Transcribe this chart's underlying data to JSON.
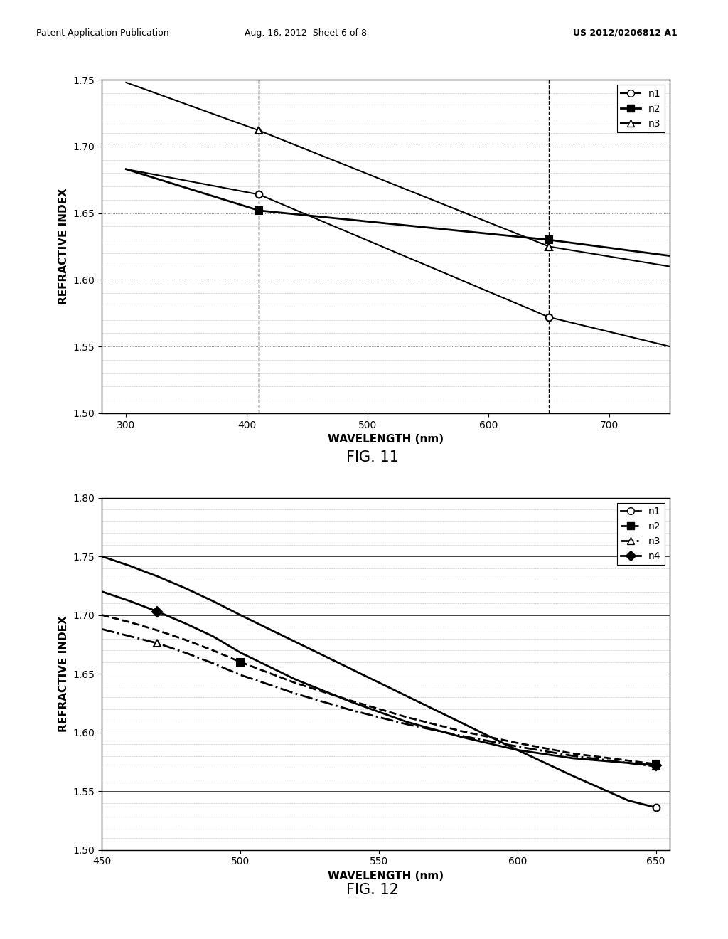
{
  "header_left": "Patent Application Publication",
  "header_mid": "Aug. 16, 2012  Sheet 6 of 8",
  "header_right": "US 2012/0206812 A1",
  "fig11": {
    "title": "FIG. 11",
    "xlabel": "WAVELENGTH (nm)",
    "ylabel": "REFRACTIVE INDEX",
    "xlim": [
      280,
      750
    ],
    "ylim": [
      1.5,
      1.75
    ],
    "xticks": [
      300,
      400,
      500,
      600,
      700
    ],
    "yticks": [
      1.5,
      1.55,
      1.6,
      1.65,
      1.7,
      1.75
    ],
    "vlines": [
      410,
      650
    ],
    "n1": {
      "x": [
        300,
        410,
        650,
        750
      ],
      "y": [
        1.683,
        1.664,
        1.572,
        1.55
      ],
      "label": "n1",
      "marker": "o",
      "markerfacecolor": "white",
      "markeredgecolor": "black",
      "linestyle": "-",
      "color": "black",
      "linewidth": 1.5,
      "markersize": 7,
      "show_markers_at": [
        410,
        650
      ]
    },
    "n2": {
      "x": [
        300,
        410,
        650,
        750
      ],
      "y": [
        1.683,
        1.652,
        1.63,
        1.618
      ],
      "label": "n2",
      "marker": "s",
      "markerfacecolor": "black",
      "markeredgecolor": "black",
      "linestyle": "-",
      "color": "black",
      "linewidth": 2.0,
      "markersize": 7,
      "show_markers_at": [
        410,
        650
      ]
    },
    "n3": {
      "x": [
        300,
        410,
        650,
        750
      ],
      "y": [
        1.748,
        1.712,
        1.625,
        1.61
      ],
      "label": "n3",
      "marker": "^",
      "markerfacecolor": "white",
      "markeredgecolor": "black",
      "linestyle": "-",
      "color": "black",
      "linewidth": 1.5,
      "markersize": 7,
      "show_markers_at": [
        410,
        650
      ]
    }
  },
  "fig12": {
    "title": "FIG. 12",
    "xlabel": "WAVELENGTH (nm)",
    "ylabel": "REFRACTIVE INDEX",
    "xlim": [
      450,
      655
    ],
    "ylim": [
      1.5,
      1.8
    ],
    "xticks": [
      450,
      500,
      550,
      600,
      650
    ],
    "yticks": [
      1.5,
      1.55,
      1.6,
      1.65,
      1.7,
      1.75,
      1.8
    ],
    "n1": {
      "x": [
        450,
        460,
        470,
        480,
        490,
        500,
        520,
        540,
        560,
        580,
        600,
        620,
        640,
        650
      ],
      "y": [
        1.75,
        1.742,
        1.733,
        1.723,
        1.712,
        1.7,
        1.677,
        1.654,
        1.631,
        1.608,
        1.585,
        1.563,
        1.542,
        1.536
      ],
      "label": "n1",
      "marker": "o",
      "markerfacecolor": "white",
      "markeredgecolor": "black",
      "linestyle": "-",
      "color": "black",
      "linewidth": 2.0,
      "markersize": 7,
      "show_markers_at": [
        650
      ]
    },
    "n2": {
      "x": [
        450,
        460,
        470,
        480,
        490,
        500,
        520,
        540,
        560,
        580,
        600,
        620,
        640,
        650
      ],
      "y": [
        1.7,
        1.694,
        1.687,
        1.679,
        1.67,
        1.66,
        1.642,
        1.627,
        1.613,
        1.601,
        1.591,
        1.582,
        1.576,
        1.573
      ],
      "label": "n2",
      "marker": "s",
      "markerfacecolor": "black",
      "markeredgecolor": "black",
      "linestyle": "--",
      "color": "black",
      "linewidth": 2.0,
      "markersize": 7,
      "show_markers_at": [
        500,
        650
      ]
    },
    "n3": {
      "x": [
        450,
        460,
        470,
        480,
        490,
        500,
        520,
        540,
        560,
        580,
        600,
        620,
        640,
        650
      ],
      "y": [
        1.688,
        1.682,
        1.676,
        1.668,
        1.659,
        1.649,
        1.633,
        1.619,
        1.607,
        1.597,
        1.588,
        1.58,
        1.574,
        1.571
      ],
      "label": "n3",
      "marker": "^",
      "markerfacecolor": "white",
      "markeredgecolor": "black",
      "linestyle": "-.",
      "color": "black",
      "linewidth": 2.0,
      "markersize": 7,
      "show_markers_at": [
        470,
        530,
        650
      ]
    },
    "n4": {
      "x": [
        450,
        460,
        470,
        480,
        490,
        500,
        520,
        540,
        560,
        580,
        600,
        620,
        640,
        650
      ],
      "y": [
        1.72,
        1.712,
        1.703,
        1.693,
        1.682,
        1.668,
        1.645,
        1.626,
        1.609,
        1.596,
        1.585,
        1.578,
        1.574,
        1.572
      ],
      "label": "n4",
      "marker": "D",
      "markerfacecolor": "black",
      "markeredgecolor": "black",
      "linestyle": "-",
      "color": "black",
      "linewidth": 2.0,
      "markersize": 7,
      "show_markers_at": [
        470,
        650
      ]
    }
  },
  "background_color": "#ffffff"
}
